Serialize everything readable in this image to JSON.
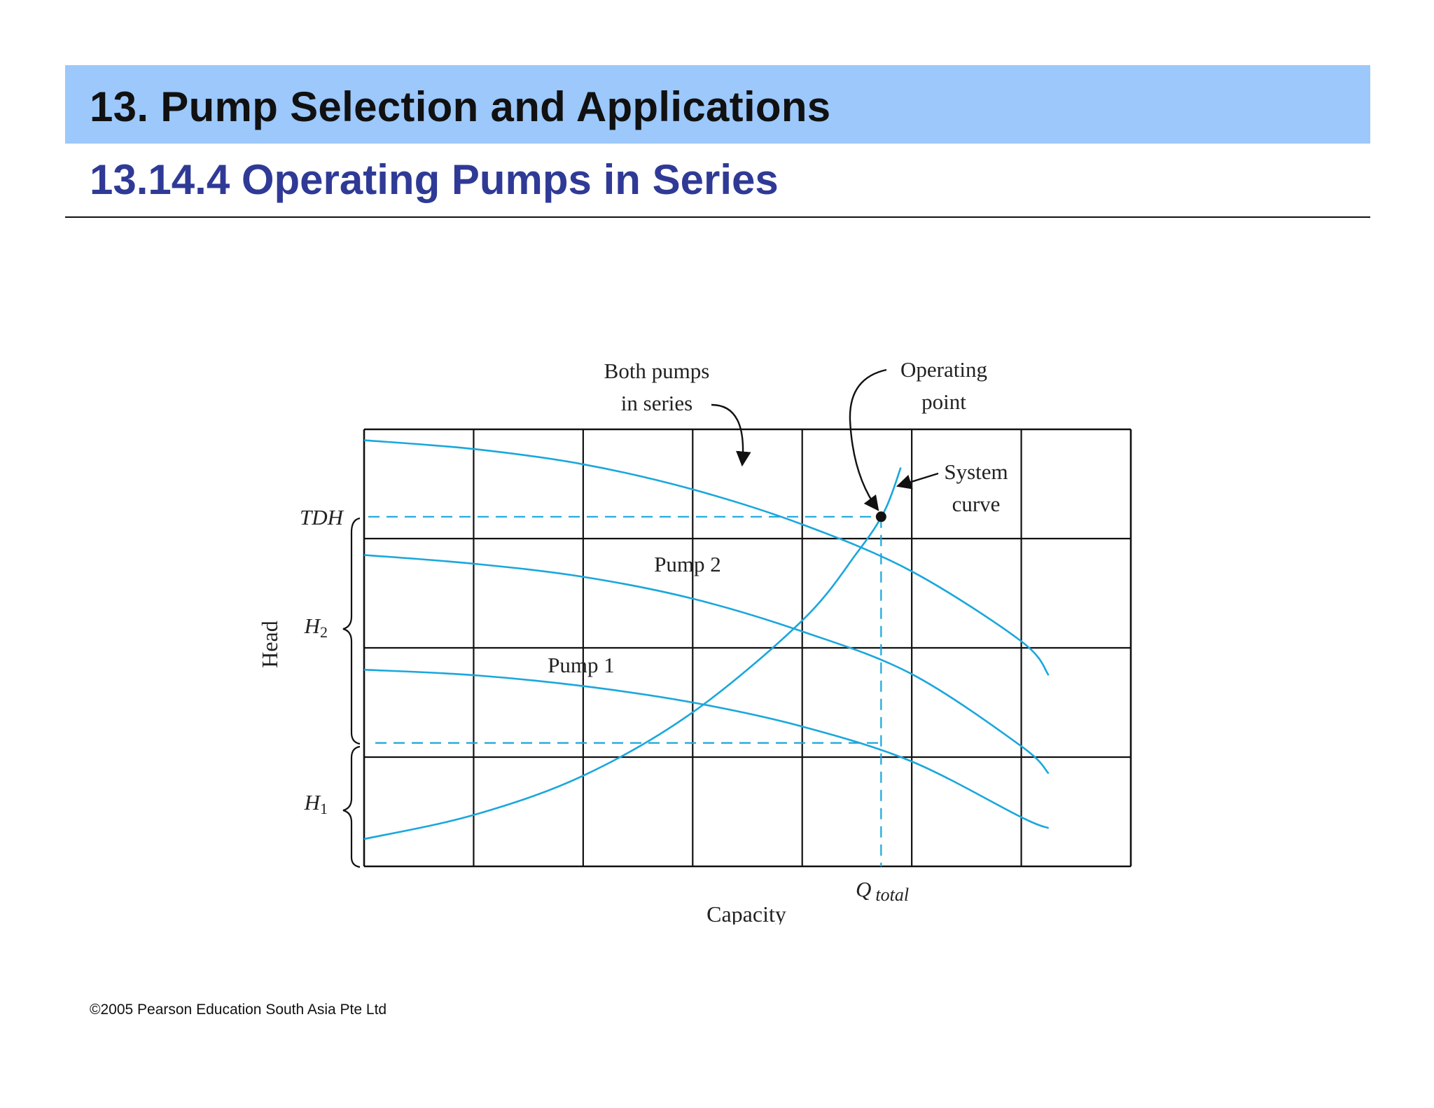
{
  "header": {
    "title": "13. Pump Selection and Applications",
    "subtitle": "13.14.4 Operating Pumps in Series"
  },
  "footer": {
    "copyright": "©2005 Pearson Education South Asia Pte Ltd"
  },
  "colors": {
    "title_bar": "#9cc8fc",
    "subtitle_text": "#2f3a96",
    "curve": "#1aa7dc",
    "grid": "#111111"
  },
  "chart_data": {
    "type": "line",
    "xlabel": "Capacity",
    "ylabel": "Head",
    "xlim": [
      0,
      7
    ],
    "ylim": [
      0,
      4
    ],
    "grid": true,
    "series": [
      {
        "label": "Both pumps in series",
        "x": [
          0,
          1,
          2,
          3,
          4,
          5,
          6,
          6.25
        ],
        "y": [
          3.9,
          3.82,
          3.68,
          3.45,
          3.13,
          2.7,
          2.06,
          1.75
        ]
      },
      {
        "label": "Pump 2",
        "x": [
          0,
          1,
          2,
          3,
          4,
          5,
          6,
          6.25
        ],
        "y": [
          2.85,
          2.77,
          2.65,
          2.45,
          2.15,
          1.76,
          1.1,
          0.85
        ]
      },
      {
        "label": "Pump 1",
        "x": [
          0,
          1,
          2,
          3,
          4,
          5,
          6,
          6.25
        ],
        "y": [
          1.8,
          1.75,
          1.65,
          1.5,
          1.28,
          0.96,
          0.45,
          0.35
        ]
      },
      {
        "label": "System curve",
        "x": [
          0,
          1,
          2,
          3,
          4,
          4.5,
          4.75,
          4.9
        ],
        "y": [
          0.25,
          0.47,
          0.83,
          1.41,
          2.25,
          2.87,
          3.25,
          3.65
        ]
      }
    ],
    "operating_point": {
      "label": "Operating point",
      "x": 4.72,
      "y": 3.2
    },
    "reference_lines": {
      "tdh": {
        "label": "TDH",
        "y": 3.2
      },
      "h1_level": {
        "y": 1.13
      },
      "q_total": {
        "label": "Q",
        "subscript": "total",
        "x": 4.72
      }
    },
    "bracket_labels": {
      "h2": {
        "main": "H",
        "sub": "2"
      },
      "h1": {
        "main": "H",
        "sub": "1"
      }
    },
    "annotations": {
      "both_pumps": [
        "Both pumps",
        "in series"
      ],
      "operating_point": [
        "Operating",
        "point"
      ],
      "system_curve": [
        "System",
        "curve"
      ]
    }
  }
}
